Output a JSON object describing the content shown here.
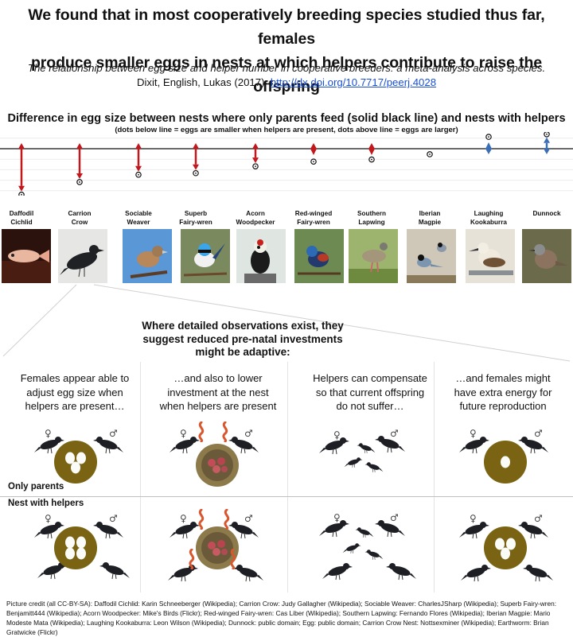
{
  "headline": {
    "line1": "We found that in most cooperatively breeding species studied thus far, females",
    "line2": "produce smaller eggs in nests at which helpers contribute to raise the offspring"
  },
  "citation": {
    "title": "The relationship between egg size and helper number in cooperative breeders: a meta-analysis across species.",
    "authors": "Dixit, English, Lukas (2017)",
    "doi": "http://dx.doi.org/10.7717/peerj.4028"
  },
  "section": {
    "title": "Difference in egg size between nests where only parents feed (solid black line) and nests with helpers",
    "subtitle": "(dots below line = eggs are smaller when helpers are present, dots above line = eggs are larger)"
  },
  "chart_data": {
    "type": "scatter",
    "series_note": "difference relative to the parents-only baseline; negative = smaller eggs with helpers",
    "categories": [
      "Daffodil Cichlid",
      "Carrion Crow",
      "Sociable Weaver",
      "Superb Fairy-wren",
      "Acorn Woodpecker",
      "Red-winged Fairy-wren",
      "Southern Lapwing",
      "Iberian Magpie",
      "Laughing Kookaburra",
      "Dunnock"
    ],
    "values": [
      -8.0,
      -5.6,
      -4.2,
      -3.9,
      -2.6,
      -1.7,
      -1.3,
      -0.3,
      1.5,
      2.0
    ],
    "marker_colors": [
      "#c0181d",
      "#c0181d",
      "#c0181d",
      "#c0181d",
      "#c0181d",
      "#c0181d",
      "#c0181d",
      "#111111",
      "#3a6fb5",
      "#3a6fb5"
    ],
    "baseline": 0,
    "grid": true
  },
  "species": [
    {
      "line1": "Daffodil",
      "line2": "Cichlid"
    },
    {
      "line1": "Carrion",
      "line2": "Crow"
    },
    {
      "line1": "Sociable",
      "line2": "Weaver"
    },
    {
      "line1": "Superb",
      "line2": "Fairy-wren"
    },
    {
      "line1": "Acorn",
      "line2": "Woodpecker"
    },
    {
      "line1": "Red-winged",
      "line2": "Fairy-wren"
    },
    {
      "line1": "Southern",
      "line2": "Lapwing"
    },
    {
      "line1": "Iberian",
      "line2": "Magpie"
    },
    {
      "line1": "Laughing",
      "line2": "Kookaburra"
    },
    {
      "line1": "Dunnock",
      "line2": ""
    }
  ],
  "adaptive": {
    "line1": "Where detailed observations exist, they",
    "line2": "suggest reduced pre-natal investments",
    "line3": "might be adaptive:"
  },
  "panels": [
    {
      "line1": "Females appear able to",
      "line2": "adjust egg size when",
      "line3": "helpers are present…"
    },
    {
      "line1": "…and also to lower",
      "line2": "investment at the nest",
      "line3": "when helpers are present"
    },
    {
      "line1": "Helpers can compensate",
      "line2": "so that current offspring",
      "line3": "do not suffer…"
    },
    {
      "line1": "…and females might",
      "line2": "have extra energy for",
      "line3": "future reproduction"
    }
  ],
  "rows": {
    "only_parents": "Only parents",
    "with_helpers": "Nest with helpers"
  },
  "credit": "Picture credit (all CC-BY-SA): Daffodil Cichlid: Karin Schneeberger (Wikipedia); Carrion Crow: Judy Gallagher (Wikipedia); Sociable Weaver: CharlesJSharp (Wikipedia); Superb Fairy-wren: Benjamitt444 (Wikipedia); Acorn Woodpecker: Mike's Birds (Flickr); Red-winged Fairy-wren: Cas Liber (Wikipedia); Southern Lapwing: Fernando Flores (Wikipedia); Iberian Magpie: Mario Modeste Mata (Wikipedia); Laughing Kookaburra: Leon Wilson (Wikipedia); Dunnock: public domain; Egg: public domain; Carrion Crow Nest: Nottsexminer (Wikipedia); Earthworm: Brian Gratwicke (Flickr)",
  "colors": {
    "decrease": "#c0181d",
    "increase": "#3a6fb5",
    "nest": "#7a6414",
    "link": "#1a4fd6"
  }
}
